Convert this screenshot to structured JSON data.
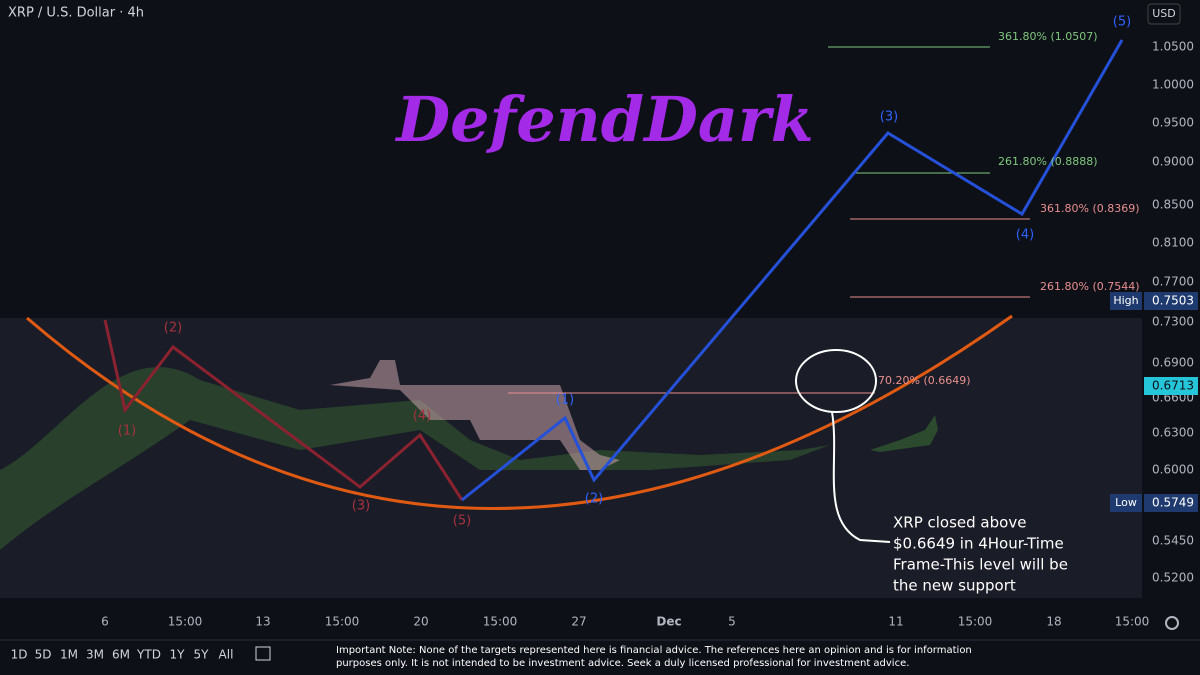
{
  "header": {
    "symbol": "XRP / U.S. Dollar · 4h",
    "currency": "USD"
  },
  "watermark": "DefendDark",
  "price_axis": {
    "ticks": [
      "1.0500",
      "1.0000",
      "0.9500",
      "0.9000",
      "0.8500",
      "0.8100",
      "0.7700",
      "0.7300",
      "0.6900",
      "0.6600",
      "0.6300",
      "0.6000",
      "0.5450",
      "0.5200"
    ],
    "badges": [
      {
        "label": "High",
        "value": "0.7503"
      },
      {
        "value": "0.6713"
      },
      {
        "label": "Low",
        "value": "0.5749"
      }
    ]
  },
  "time_axis": [
    "6",
    "15:00",
    "13",
    "15:00",
    "20",
    "15:00",
    "27",
    "Dec",
    "5",
    "11",
    "15:00",
    "18",
    "15:00"
  ],
  "fib_levels": [
    "361.80% (1.0507)",
    "261.80% (0.8888)",
    "361.80% (0.8369)",
    "261.80% (0.7544)",
    "70.20% (0.6649)"
  ],
  "blue_waves": [
    "(5)",
    "(3)",
    "(4)",
    "(1)",
    "(2)"
  ],
  "red_waves": [
    "(1)",
    "(2)",
    "(3)",
    "(4)",
    "(5)"
  ],
  "annotation": [
    "XRP closed above",
    "$0.6649 in 4Hour-Time",
    "Frame-This level will be",
    "the new support"
  ],
  "ranges": [
    "1D",
    "5D",
    "1M",
    "3M",
    "6M",
    "YTD",
    "1Y",
    "5Y",
    "All"
  ],
  "note": [
    "Important Note: None of the targets represented here is financial advice. The references here an opinion and is for information",
    "purposes only. It is not intended to be investment advice. Seek a duly licensed professional for investment advice."
  ]
}
